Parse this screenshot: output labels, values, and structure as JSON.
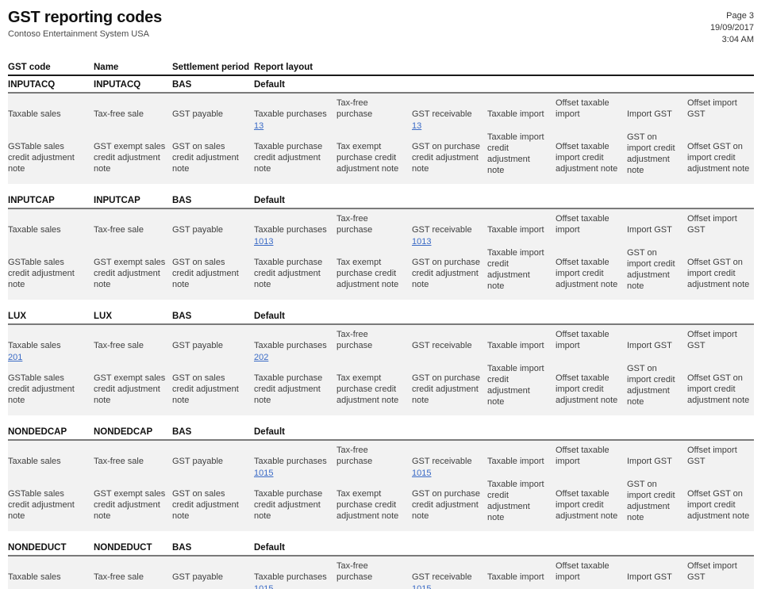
{
  "theme": {
    "link_color": "#3b6bc6",
    "band_color": "#f2f2f2"
  },
  "report": {
    "title": "GST reporting codes",
    "subtitle": "Contoso Entertainment System USA",
    "page_label": "Page 3",
    "date": "19/09/2017",
    "time": "3:04 AM"
  },
  "table": {
    "columns": [
      "GST code",
      "Name",
      "Settlement period",
      "Report layout"
    ],
    "detail_labels_row1": [
      "Taxable sales",
      "Tax-free sale",
      "GST payable",
      "Taxable purchases",
      "Tax-free purchase",
      "GST receivable",
      "Taxable import",
      "Offset taxable import",
      "Import GST",
      "Offset import GST"
    ],
    "detail_labels_row2": [
      "GSTable sales credit adjustment note",
      "GST exempt sales credit adjustment note",
      "GST on sales credit adjustment note",
      "Taxable purchase credit adjustment note",
      "Tax exempt purchase credit adjustment note",
      "GST on purchase credit adjustment note",
      "Taxable import credit adjustment note",
      "Offset taxable import credit adjustment note",
      "GST on import credit adjustment note",
      "Offset GST on import credit adjustment note"
    ],
    "sections": [
      {
        "gst_code": "INPUTACQ",
        "name": "INPUTACQ",
        "settlement_period": "BAS",
        "report_layout": "Default",
        "links": [
          "",
          "",
          "",
          "13",
          "",
          "13",
          "",
          "",
          "",
          ""
        ],
        "show_row2": true
      },
      {
        "gst_code": "INPUTCAP",
        "name": "INPUTCAP",
        "settlement_period": "BAS",
        "report_layout": "Default",
        "links": [
          "",
          "",
          "",
          "1013",
          "",
          "1013",
          "",
          "",
          "",
          ""
        ],
        "show_row2": true
      },
      {
        "gst_code": "LUX",
        "name": "LUX",
        "settlement_period": "BAS",
        "report_layout": "Default",
        "links": [
          "201",
          "",
          "",
          "202",
          "",
          "",
          "",
          "",
          "",
          ""
        ],
        "show_row2": true
      },
      {
        "gst_code": "NONDEDCAP",
        "name": "NONDEDCAP",
        "settlement_period": "BAS",
        "report_layout": "Default",
        "links": [
          "",
          "",
          "",
          "1015",
          "",
          "1015",
          "",
          "",
          "",
          ""
        ],
        "show_row2": true
      },
      {
        "gst_code": "NONDEDUCT",
        "name": "NONDEDUCT",
        "settlement_period": "BAS",
        "report_layout": "Default",
        "links": [
          "",
          "",
          "",
          "1015",
          "",
          "1015",
          "",
          "",
          "",
          ""
        ],
        "show_row2": false
      }
    ]
  }
}
